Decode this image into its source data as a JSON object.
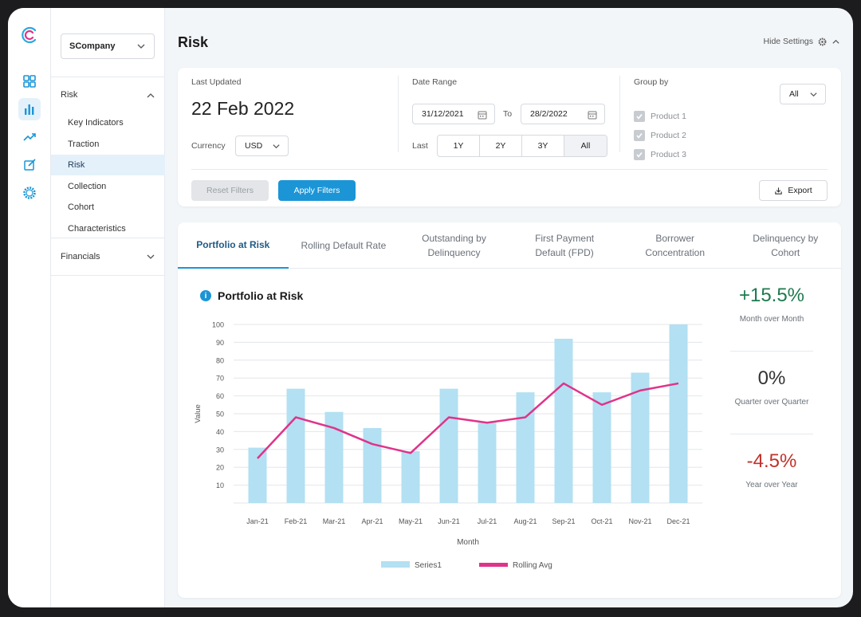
{
  "sidebar": {
    "company": "SCompany",
    "risk_section": "Risk",
    "items": [
      {
        "label": "Key Indicators"
      },
      {
        "label": "Traction"
      },
      {
        "label": "Risk"
      },
      {
        "label": "Collection"
      },
      {
        "label": "Cohort"
      },
      {
        "label": "Characteristics"
      }
    ],
    "financials_section": "Financials"
  },
  "header": {
    "title": "Risk",
    "hide_settings": "Hide Settings"
  },
  "filters": {
    "last_updated_label": "Last Updated",
    "last_updated_value": "22 Feb 2022",
    "currency_label": "Currency",
    "currency_value": "USD",
    "date_range_label": "Date Range",
    "date_from": "31/12/2021",
    "to_label": "To",
    "date_to": "28/2/2022",
    "last_label": "Last",
    "periods": [
      "1Y",
      "2Y",
      "3Y",
      "All"
    ],
    "group_by_label": "Group by",
    "group_by_value": "All",
    "products": [
      "Product 1",
      "Product 2",
      "Product 3"
    ],
    "reset_label": "Reset Filters",
    "apply_label": "Apply Filters",
    "export_label": "Export"
  },
  "tabs": [
    {
      "label": "Portfolio at Risk"
    },
    {
      "label": "Rolling Default Rate"
    },
    {
      "label": "Outstanding by Delinquency"
    },
    {
      "label": "First Payment Default (FPD)"
    },
    {
      "label": "Borrower Concentration"
    },
    {
      "label": "Delinquency by Cohort"
    }
  ],
  "chart_title": "Portfolio at Risk",
  "stats": [
    {
      "value": "+15.5%",
      "caption": "Month over Month",
      "color": "#1e7a4f"
    },
    {
      "value": "0%",
      "caption": "Quarter over Quarter",
      "color": "#333333"
    },
    {
      "value": "-4.5%",
      "caption": "Year over Year",
      "color": "#c0322b"
    }
  ],
  "chart_data": {
    "type": "bar",
    "categories": [
      "Jan-21",
      "Feb-21",
      "Mar-21",
      "Apr-21",
      "May-21",
      "Jun-21",
      "Jul-21",
      "Aug-21",
      "Sep-21",
      "Oct-21",
      "Nov-21",
      "Dec-21"
    ],
    "series": [
      {
        "name": "Series1",
        "type": "bar",
        "color": "#b3e0f2",
        "values": [
          31,
          64,
          51,
          42,
          29,
          64,
          45,
          62,
          92,
          62,
          73,
          100
        ]
      },
      {
        "name": "Rolling Avg",
        "type": "line",
        "color": "#e0338a",
        "values": [
          25,
          48,
          42,
          33,
          28,
          48,
          45,
          48,
          67,
          55,
          63,
          67
        ]
      }
    ],
    "xlabel": "Month",
    "ylabel": "Value",
    "yticks": [
      10,
      20,
      30,
      40,
      50,
      60,
      70,
      80,
      90,
      100
    ],
    "ylim": [
      0,
      100
    ],
    "grid": true,
    "legend": "bottom"
  }
}
